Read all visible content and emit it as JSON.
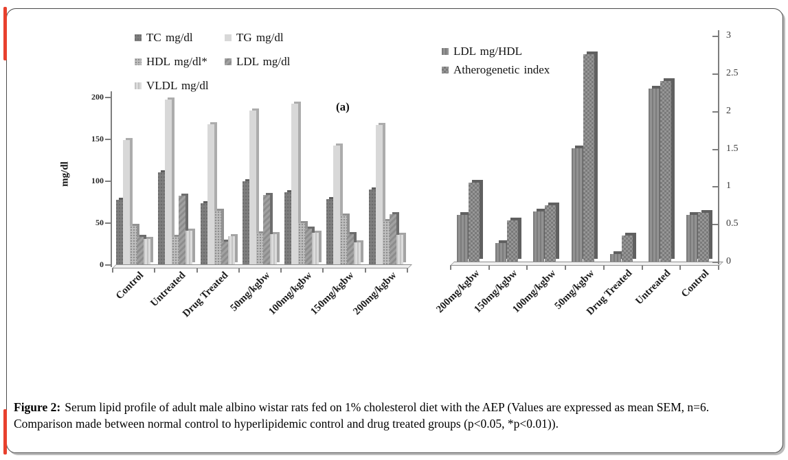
{
  "figure": {
    "accent_color": "#e8402d"
  },
  "caption": {
    "label": "Figure 2:",
    "line1": "Serum lipid profile of adult male albino wistar rats fed on 1% cholesterol diet with the AEP (Values are expressed as mean SEM, n=6.",
    "line2": "Comparison made between normal control to hyperlipidemic control and drug treated groups (p<0.05, *p<0.01))."
  },
  "chart_data": [
    {
      "type": "bar",
      "panel_label": "(a)",
      "ylabel": "mg/dl",
      "ylim": [
        0,
        200
      ],
      "yticks": [
        0,
        50,
        100,
        150,
        200
      ],
      "yaxis_side": "left",
      "grid": false,
      "legend_position": "top-left, two columns",
      "categories": [
        "Control",
        "Untreated",
        "Drug Treated",
        "50mg/kgbw",
        "100mg/kgbw",
        "150mg/kgbw",
        "200mg/kgbw"
      ],
      "series": [
        {
          "name": "TC mg/dl",
          "pattern": "solid-dark",
          "values": [
            77,
            110,
            73,
            99,
            86,
            78,
            89
          ]
        },
        {
          "name": "TG mg/dl",
          "pattern": "solid-light",
          "values": [
            148,
            197,
            167,
            184,
            192,
            142,
            166
          ]
        },
        {
          "name": "HDL mg/dl*",
          "pattern": "stipple",
          "values": [
            46,
            33,
            64,
            37,
            49,
            58,
            52
          ]
        },
        {
          "name": "LDL mg/dl",
          "pattern": "diagonal",
          "values": [
            33,
            82,
            27,
            83,
            43,
            36,
            60
          ]
        },
        {
          "name": "VLDL mg/dl",
          "pattern": "vlines",
          "values": [
            30,
            40,
            34,
            36,
            38,
            26,
            35
          ]
        }
      ]
    },
    {
      "type": "bar",
      "ylim": [
        0,
        3
      ],
      "yticks": [
        0,
        0.5,
        1,
        1.5,
        2,
        2.5,
        3
      ],
      "yaxis_side": "right",
      "grid": false,
      "legend_position": "top-left, one column",
      "categories": [
        "200mg/kgbw",
        "150mg/kgbw",
        "100mg/kgbw",
        "50mg/kgbw",
        "Drug Treated",
        "Untreated",
        "Control"
      ],
      "series": [
        {
          "name": "LDL mg/HDL",
          "pattern": "vlines-dark",
          "values": [
            0.62,
            0.25,
            0.67,
            1.5,
            0.1,
            2.3,
            0.62
          ]
        },
        {
          "name": "Atherogenetic index",
          "pattern": "checker",
          "values": [
            1.05,
            0.55,
            0.75,
            2.75,
            0.35,
            2.4,
            0.65
          ]
        }
      ]
    }
  ]
}
